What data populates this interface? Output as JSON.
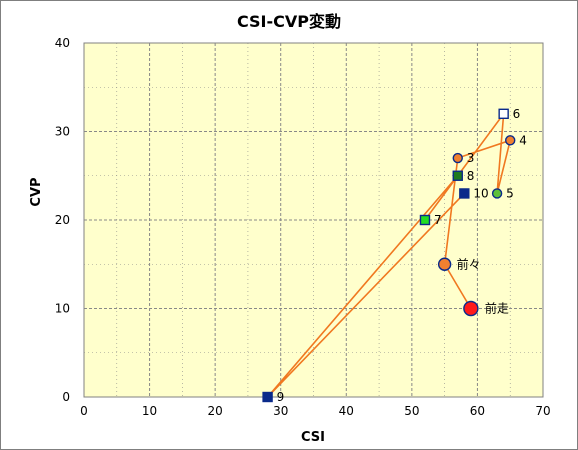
{
  "chart_data": {
    "type": "scatter",
    "title": "CSI-CVP変動",
    "xlabel": "CSI",
    "ylabel": "CVP",
    "xlim": [
      0,
      70
    ],
    "ylim": [
      0,
      40
    ],
    "xticks": [
      0,
      10,
      20,
      30,
      40,
      50,
      60,
      70
    ],
    "yticks": [
      0,
      10,
      20,
      30,
      40
    ],
    "grid": true,
    "colors": {
      "plot_bg": "#ffffcc",
      "line": "#f07820",
      "grid": "#888888",
      "navy": "#0a2a8a",
      "orange": "#f08030",
      "red": "#ff1a1a",
      "green": "#5fbf3a",
      "dark_green": "#1f7a1f",
      "light_green": "#22dd22",
      "white": "#ffffff"
    },
    "path_order": [
      "前走",
      "前々",
      "3",
      "4",
      "5",
      "6",
      "7",
      "8",
      "9",
      "10"
    ],
    "points": [
      {
        "label": "前走",
        "x": 59,
        "y": 10,
        "marker": "circle",
        "size": "large",
        "fill": "#ff1a1a",
        "stroke": "#0a2a8a"
      },
      {
        "label": "前々",
        "x": 55,
        "y": 15,
        "marker": "circle",
        "size": "medium",
        "fill": "#f08030",
        "stroke": "#0a2a8a"
      },
      {
        "label": "3",
        "x": 57,
        "y": 27,
        "marker": "circle",
        "size": "small",
        "fill": "#f08030",
        "stroke": "#0a2a8a"
      },
      {
        "label": "4",
        "x": 65,
        "y": 29,
        "marker": "circle",
        "size": "small",
        "fill": "#f08030",
        "stroke": "#0a2a8a"
      },
      {
        "label": "5",
        "x": 63,
        "y": 23,
        "marker": "circle",
        "size": "small",
        "fill": "#5fbf3a",
        "stroke": "#0a2a8a"
      },
      {
        "label": "6",
        "x": 64,
        "y": 32,
        "marker": "square",
        "size": "small",
        "fill": "#ffffff",
        "stroke": "#0a2a8a"
      },
      {
        "label": "7",
        "x": 52,
        "y": 20,
        "marker": "square",
        "size": "small",
        "fill": "#22dd22",
        "stroke": "#0a2a8a"
      },
      {
        "label": "8",
        "x": 57,
        "y": 25,
        "marker": "square",
        "size": "small",
        "fill": "#1f7a1f",
        "stroke": "#0a2a8a"
      },
      {
        "label": "9",
        "x": 28,
        "y": 0,
        "marker": "square",
        "size": "small",
        "fill": "#0a2a8a",
        "stroke": "#0a2a8a"
      },
      {
        "label": "10",
        "x": 58,
        "y": 23,
        "marker": "square",
        "size": "small",
        "fill": "#0a2a8a",
        "stroke": "#0a2a8a"
      }
    ]
  }
}
